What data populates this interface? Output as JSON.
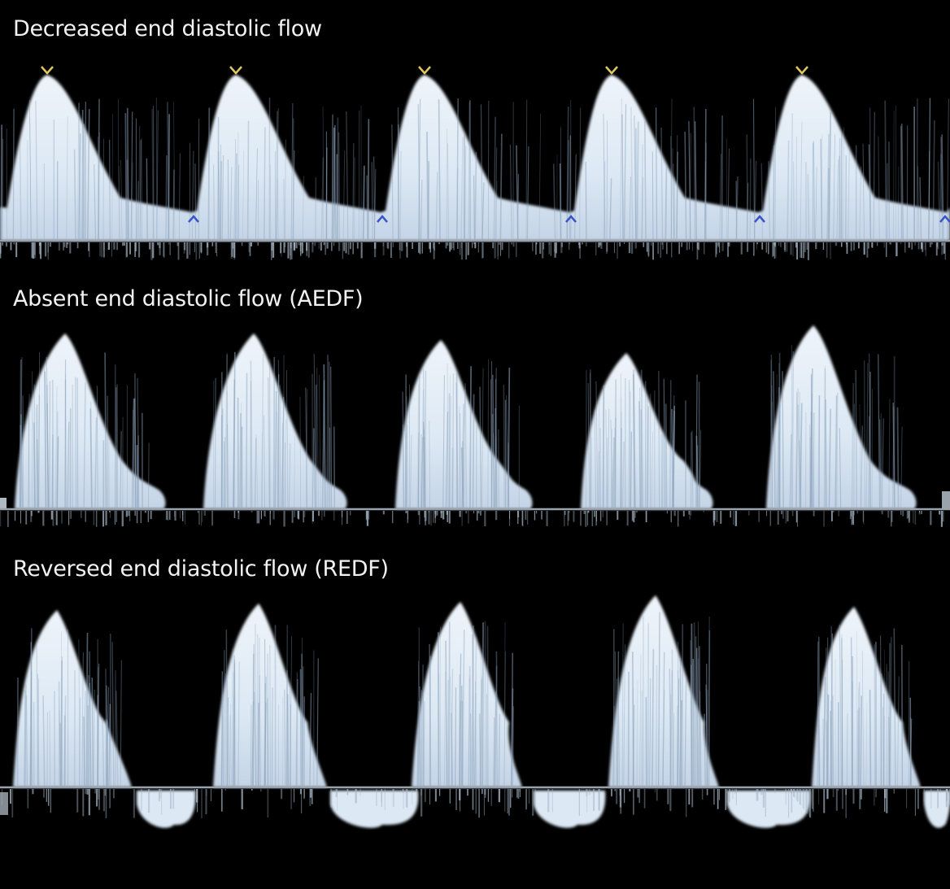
{
  "figure": {
    "panels": [
      {
        "title": "Decreased end diastolic flow",
        "pattern": "decreased",
        "cycles": 5
      },
      {
        "title": "Absent end diastolic flow (AEDF)",
        "pattern": "absent",
        "cycles": 5
      },
      {
        "title": "Reversed end diastolic flow (REDF)",
        "pattern": "reversed",
        "cycles": 5
      }
    ],
    "colors": {
      "background": "#000000",
      "spectrum": "#dce8f4",
      "envelope": "#c9c87a",
      "baseline": "#9aa3ab",
      "marker_peak": "#e0c860",
      "marker_end": "#3a55c8"
    }
  }
}
